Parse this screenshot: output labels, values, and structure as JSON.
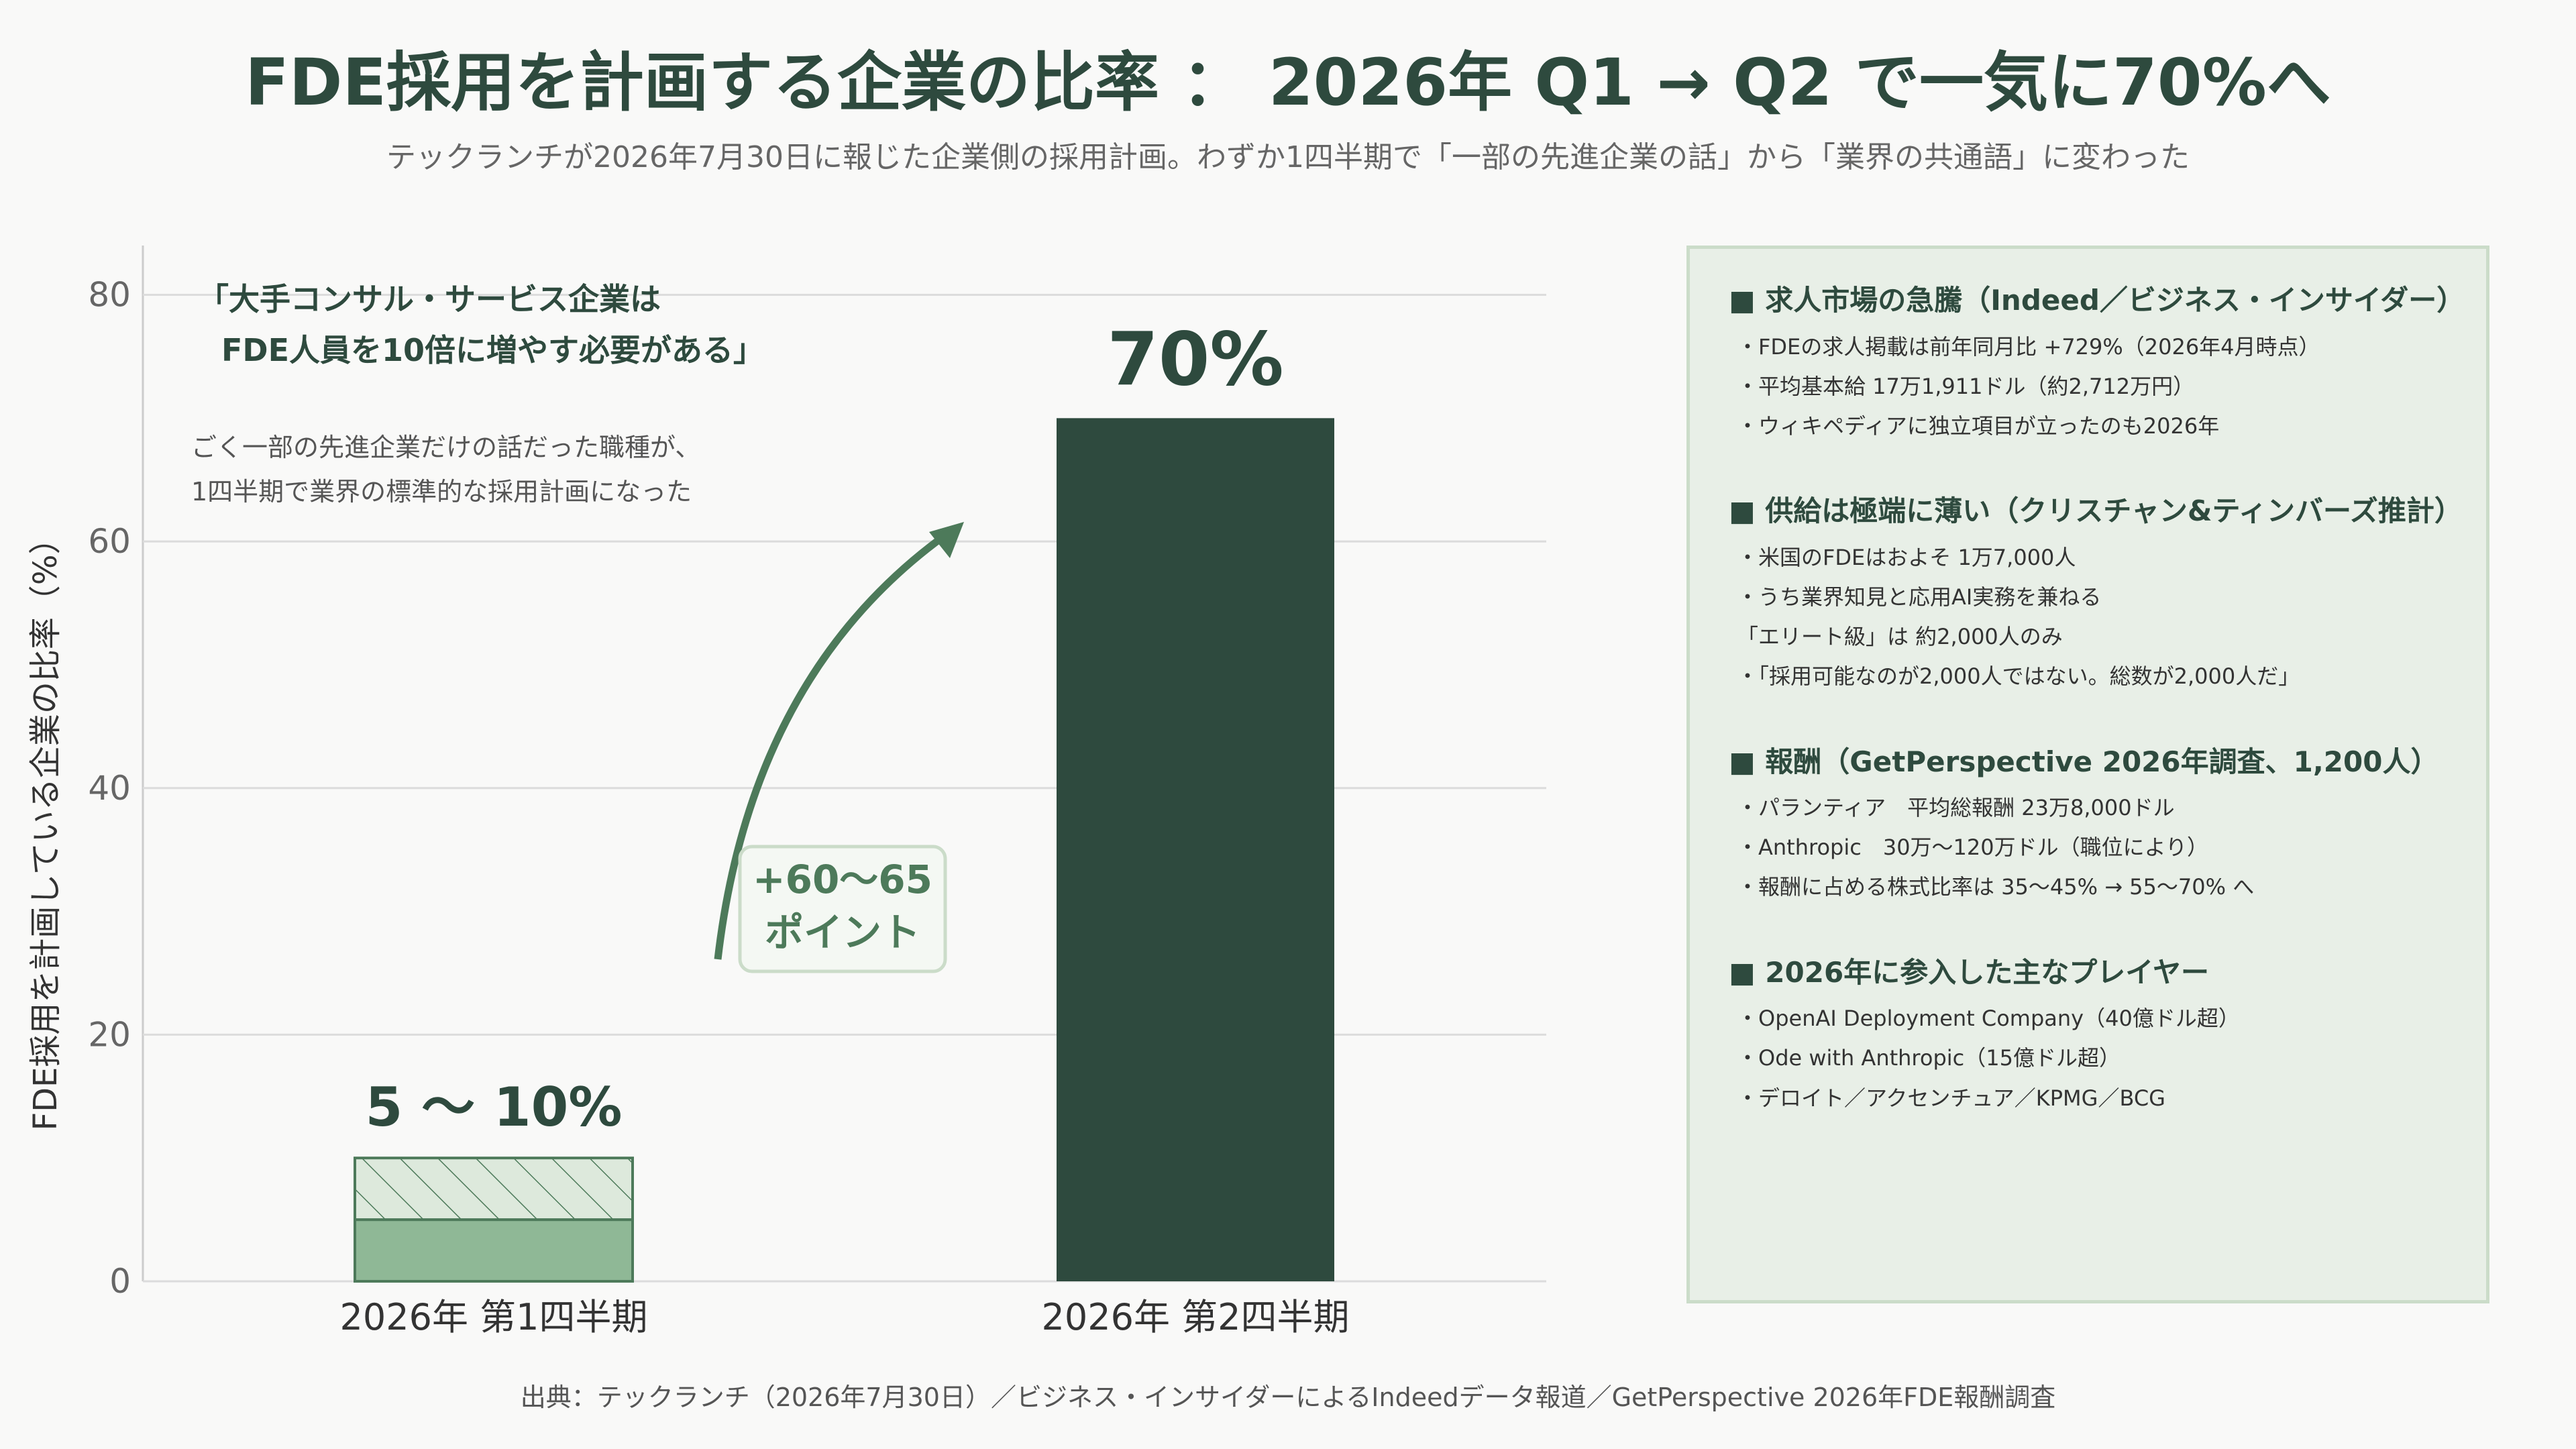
{
  "title": "FDE採用を計画する企業の比率 ： 2026年 Q1 → Q2 で一気に70%へ",
  "subtitle": "テックランチが2026年7月30日に報じた企業側の採用計画。わずか1四半期で「一部の先進企業の話」から「業界の共通語」に変わった",
  "chart_data": {
    "type": "bar",
    "categories": [
      "2026年 第1四半期",
      "2026年 第2四半期"
    ],
    "ylabel": "FDE採用を計画している企業の比率（%）",
    "ylim": [
      0,
      84
    ],
    "yticks": [
      0,
      20,
      40,
      60,
      80
    ],
    "grid": true,
    "bars": [
      {
        "category": "2026年 第1四半期",
        "low": 5,
        "high": 10,
        "label": "5 ～ 10%"
      },
      {
        "category": "2026年 第2四半期",
        "value": 70,
        "label": "70%"
      }
    ],
    "colors": {
      "q1_solid": "#8fb896",
      "q1_hatch_fill": "#dde9dc",
      "q1_border": "#4d7a5a",
      "q2": "#2e4a3e",
      "arrow": "#4d7a5a"
    }
  },
  "annotations": {
    "quote_line1": "「大手コンサル・サービス企業は",
    "quote_line2": "FDE人員を10倍に増やす必要がある」",
    "note_line1": "ごく一部の先進企業だけの話だった職種が、",
    "note_line2": "1四半期で業界の標準的な採用計画になった",
    "delta_line1": "+60～65",
    "delta_line2": "ポイント"
  },
  "panel": {
    "sections": [
      {
        "heading": "■ 求人市場の急騰（Indeed／ビジネス・インサイダー）",
        "items": [
          "・FDEの求人掲載は前年同月比 +729%（2026年4月時点）",
          "・平均基本給 17万1,911ドル（約2,712万円）",
          "・ウィキペディアに独立項目が立ったのも2026年"
        ]
      },
      {
        "heading": "■ 供給は極端に薄い（クリスチャン&ティンバーズ推計）",
        "items": [
          "・米国のFDEはおよそ 1万7,000人",
          "・うち業界知見と応用AI実務を兼ねる\n「エリート級」は 約2,000人のみ",
          "・「採用可能なのが2,000人ではない。総数が2,000人だ」"
        ]
      },
      {
        "heading": "■ 報酬（GetPerspective 2026年調査、1,200人）",
        "items": [
          "・パランティア　平均総報酬 23万8,000ドル",
          "・Anthropic　30万～120万ドル（職位により）",
          "・報酬に占める株式比率は 35～45% → 55～70% へ"
        ]
      },
      {
        "heading": "■ 2026年に参入した主なプレイヤー",
        "items": [
          "・OpenAI Deployment Company（40億ドル超）",
          "・Ode with Anthropic（15億ドル超）",
          "・デロイト／アクセンチュア／KPMG／BCG"
        ]
      }
    ]
  },
  "source": "出典：テックランチ（2026年7月30日）／ビジネス・インサイダーによるIndeedデータ報道／GetPerspective 2026年FDE報酬調査"
}
